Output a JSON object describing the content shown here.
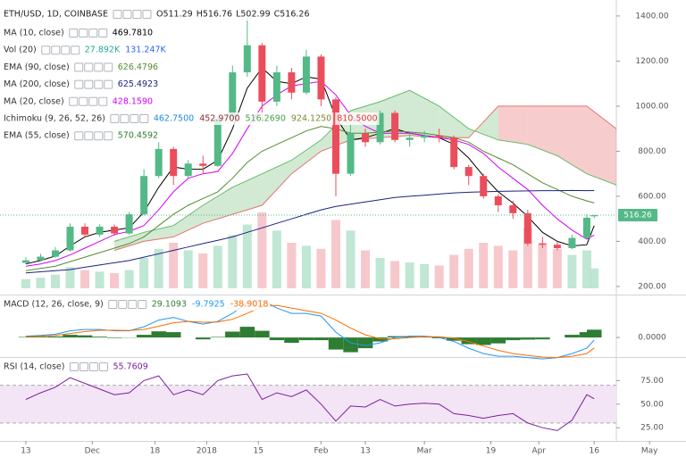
{
  "header": {
    "symbol": "ETH/USD, 1D, COINBASE",
    "ohlc": [
      "O511.29",
      "H516.76",
      "L502.99",
      "C516.26"
    ]
  },
  "indicators": [
    {
      "name": "MA (10, close)",
      "values": [
        "469.7810"
      ],
      "colors": [
        "#000000"
      ]
    },
    {
      "name": "Vol (20)",
      "values": [
        "27.892K",
        "131.247K"
      ],
      "colors": [
        "#26a69a",
        "#2962ff"
      ]
    },
    {
      "name": "EMA (90, close)",
      "values": [
        "626.4796"
      ],
      "colors": [
        "#558b2f"
      ]
    },
    {
      "name": "MA (200, close)",
      "values": [
        "625.4923"
      ],
      "colors": [
        "#1a237e"
      ]
    },
    {
      "name": "MA (20, close)",
      "values": [
        "428.1590"
      ],
      "colors": [
        "#d500f9"
      ]
    },
    {
      "name": "Ichimoku (9, 26, 52, 26)",
      "values": [
        "462.7500",
        "452.9700",
        "516.2690",
        "924.1250",
        "810.5000"
      ],
      "colors": [
        "#1e88e5",
        "#8d2b2b",
        "#43a047",
        "#7c8a2b",
        "#e53935"
      ]
    },
    {
      "name": "EMA (55, close)",
      "values": [
        "570.4592"
      ],
      "colors": [
        "#2e7d32"
      ]
    }
  ],
  "chart_data": [
    {
      "type": "candlestick",
      "x": [
        0,
        4,
        8,
        12,
        16,
        20,
        24,
        28,
        32,
        36,
        40,
        44,
        48,
        52,
        56,
        60,
        64,
        68,
        72,
        76,
        80,
        84,
        88,
        92,
        96,
        100,
        104,
        108,
        112,
        116,
        120,
        124,
        128,
        132,
        136,
        140,
        144,
        148,
        152,
        154
      ],
      "open": [
        305,
        316,
        332,
        360,
        465,
        430,
        465,
        435,
        520,
        690,
        810,
        690,
        745,
        735,
        945,
        1150,
        1270,
        1020,
        1150,
        1060,
        1220,
        1030,
        700,
        880,
        840,
        970,
        850,
        860,
        870,
        860,
        730,
        690,
        600,
        560,
        525,
        390,
        385,
        370,
        415,
        511.29
      ],
      "high": [
        330,
        345,
        375,
        480,
        480,
        475,
        475,
        530,
        720,
        840,
        820,
        760,
        780,
        960,
        1180,
        1420,
        1280,
        1180,
        1170,
        1250,
        1230,
        1040,
        920,
        900,
        980,
        980,
        880,
        890,
        900,
        870,
        740,
        700,
        610,
        580,
        540,
        420,
        400,
        430,
        520,
        516.76
      ],
      "low": [
        300,
        310,
        325,
        355,
        420,
        420,
        425,
        430,
        515,
        680,
        650,
        680,
        700,
        730,
        930,
        1130,
        930,
        1000,
        1030,
        1050,
        1000,
        600,
        690,
        820,
        830,
        840,
        820,
        840,
        840,
        720,
        650,
        590,
        530,
        500,
        380,
        370,
        360,
        365,
        410,
        502.99
      ],
      "close": [
        316,
        332,
        360,
        465,
        430,
        465,
        435,
        520,
        690,
        810,
        690,
        745,
        735,
        945,
        1150,
        1270,
        1020,
        1150,
        1060,
        1220,
        1030,
        700,
        880,
        840,
        970,
        850,
        860,
        870,
        860,
        730,
        690,
        600,
        560,
        525,
        390,
        385,
        370,
        415,
        505,
        516.26
      ],
      "up_color": "#53b987",
      "down_color": "#eb4d5c",
      "volume": {
        "values": [
          60,
          70,
          90,
          140,
          120,
          110,
          100,
          120,
          200,
          260,
          300,
          250,
          230,
          280,
          350,
          420,
          500,
          380,
          300,
          280,
          260,
          450,
          380,
          250,
          200,
          180,
          170,
          160,
          150,
          220,
          260,
          300,
          280,
          250,
          400,
          300,
          260,
          220,
          250,
          131
        ],
        "up_color": "#b9e3cf",
        "down_color": "#f5c2c7",
        "area_color": "#bcdcf5"
      },
      "lines": [
        {
          "color": "#000000",
          "values": [
            300,
            315,
            335,
            380,
            420,
            440,
            450,
            460,
            530,
            640,
            730,
            720,
            720,
            760,
            900,
            1080,
            1170,
            1110,
            1100,
            1130,
            1120,
            950,
            850,
            860,
            880,
            900,
            880,
            870,
            860,
            830,
            770,
            690,
            620,
            570,
            510,
            440,
            400,
            380,
            385,
            469.78
          ]
        },
        {
          "color": "#d500f9",
          "values": [
            290,
            300,
            315,
            340,
            370,
            400,
            430,
            445,
            470,
            540,
            620,
            680,
            700,
            710,
            790,
            900,
            1000,
            1050,
            1090,
            1100,
            1110,
            1050,
            960,
            910,
            880,
            880,
            880,
            870,
            860,
            850,
            830,
            790,
            730,
            680,
            630,
            560,
            500,
            450,
            410,
            428.16
          ]
        },
        {
          "color": "#558b2f",
          "values": [
            270,
            280,
            290,
            310,
            330,
            350,
            370,
            390,
            420,
            470,
            520,
            560,
            590,
            620,
            680,
            750,
            800,
            830,
            860,
            890,
            910,
            900,
            880,
            880,
            885,
            890,
            885,
            880,
            870,
            860,
            840,
            800,
            770,
            740,
            700,
            660,
            630,
            600,
            580,
            570.46
          ]
        },
        {
          "color": "#1a237e",
          "values": [
            260,
            265,
            270,
            275,
            285,
            295,
            305,
            315,
            330,
            345,
            360,
            375,
            390,
            405,
            420,
            440,
            460,
            480,
            500,
            520,
            540,
            555,
            565,
            575,
            585,
            595,
            600,
            605,
            610,
            615,
            618,
            620,
            622,
            623,
            624,
            625,
            625,
            626,
            625,
            625.49
          ]
        }
      ],
      "cloud": {
        "x": [
          24,
          32,
          40,
          48,
          56,
          64,
          72,
          80,
          88,
          96,
          104,
          112,
          120,
          128,
          136,
          144,
          152,
          160,
          168,
          176,
          180
        ],
        "span_a": [
          400,
          440,
          470,
          560,
          640,
          700,
          760,
          850,
          980,
          1020,
          1070,
          1000,
          900,
          850,
          830,
          780,
          700,
          650,
          600,
          540,
          520
        ],
        "span_b": [
          360,
          400,
          420,
          480,
          520,
          560,
          700,
          800,
          850,
          860,
          870,
          860,
          860,
          1000,
          1000,
          1000,
          1000,
          900,
          680,
          680,
          680
        ],
        "up_color": "#a5d6a7",
        "down_color": "#ef9a9a"
      },
      "ylim": [
        164,
        1471
      ],
      "yticks": [
        {
          "value": 200,
          "label": "200.00"
        },
        {
          "value": 400,
          "label": "400.00"
        },
        {
          "value": 600,
          "label": "600.00"
        },
        {
          "value": 800,
          "label": "800.00"
        },
        {
          "value": 1000,
          "label": "1000.00"
        },
        {
          "value": 1200,
          "label": "1200.00"
        },
        {
          "value": 1400,
          "label": "1400.00"
        }
      ],
      "xlim": [
        -7,
        160
      ],
      "xticks": [
        {
          "value": 0,
          "label": "13"
        },
        {
          "value": 18,
          "label": "Dec"
        },
        {
          "value": 35,
          "label": "18"
        },
        {
          "value": 49,
          "label": "2018"
        },
        {
          "value": 63,
          "label": "15"
        },
        {
          "value": 80,
          "label": "Feb"
        },
        {
          "value": 92,
          "label": "13"
        },
        {
          "value": 108,
          "label": "Mar"
        },
        {
          "value": 126,
          "label": "19"
        },
        {
          "value": 139,
          "label": "Apr"
        },
        {
          "value": 154,
          "label": "16"
        },
        {
          "value": 169,
          "label": "May"
        }
      ],
      "last_price": {
        "value": 516.26,
        "label": "516.26"
      },
      "last_color": "#53b987"
    },
    {
      "type": "macd",
      "title": "MACD (12, 26, close, 9)",
      "value_labels": [
        "29.1093",
        "-9.7925",
        "-38.9018"
      ],
      "label_colors": [
        "#2e7d32",
        "#2196f3",
        "#ff6d00"
      ],
      "x": [
        0,
        4,
        8,
        12,
        16,
        20,
        24,
        28,
        32,
        36,
        40,
        44,
        48,
        52,
        56,
        60,
        64,
        68,
        72,
        76,
        80,
        84,
        88,
        92,
        96,
        100,
        104,
        108,
        112,
        116,
        120,
        124,
        128,
        132,
        136,
        140,
        144,
        148,
        152,
        154
      ],
      "histogram": {
        "color": "#2e7d32",
        "values": [
          2,
          3,
          4,
          10,
          8,
          3,
          -2,
          -1,
          10,
          23,
          20,
          0,
          -7,
          2,
          22,
          40,
          25,
          -10,
          -20,
          -10,
          -10,
          -45,
          -55,
          -40,
          -15,
          5,
          5,
          2,
          -3,
          -12,
          -25,
          -28,
          -22,
          -10,
          -8,
          -7,
          0,
          10,
          20,
          29.1093
        ]
      },
      "series": [
        {
          "color": "#2196f3",
          "values": [
            5,
            8,
            12,
            25,
            30,
            30,
            25,
            25,
            40,
            65,
            75,
            60,
            50,
            60,
            90,
            130,
            140,
            110,
            90,
            90,
            80,
            20,
            -20,
            -30,
            -20,
            0,
            5,
            5,
            0,
            -15,
            -40,
            -60,
            -70,
            -70,
            -75,
            -80,
            -75,
            -60,
            -40,
            -9.7925
          ]
        },
        {
          "color": "#ff6d00",
          "values": [
            3,
            5,
            8,
            15,
            22,
            27,
            27,
            26,
            30,
            42,
            55,
            60,
            57,
            58,
            68,
            90,
            115,
            120,
            110,
            100,
            90,
            65,
            35,
            10,
            -5,
            -5,
            0,
            3,
            3,
            -3,
            -15,
            -32,
            -48,
            -60,
            -67,
            -73,
            -75,
            -70,
            -60,
            -38.9018
          ]
        }
      ],
      "ylim": [
        -73,
        157
      ],
      "yticks": [
        {
          "value": 0,
          "label": "0.0000"
        }
      ]
    },
    {
      "type": "line",
      "title": "RSI (14, close)",
      "value_labels": [
        "55.7609"
      ],
      "label_colors": [
        "#7b1fa2"
      ],
      "x": [
        0,
        4,
        8,
        12,
        16,
        20,
        24,
        28,
        32,
        36,
        40,
        44,
        48,
        52,
        56,
        60,
        64,
        68,
        72,
        76,
        80,
        84,
        88,
        92,
        96,
        100,
        104,
        108,
        112,
        116,
        120,
        124,
        128,
        132,
        136,
        140,
        144,
        148,
        152,
        154
      ],
      "series": [
        {
          "color": "#7b1fa2",
          "values": [
            55,
            62,
            68,
            78,
            72,
            66,
            60,
            62,
            75,
            80,
            60,
            65,
            60,
            75,
            80,
            82,
            55,
            62,
            58,
            65,
            50,
            32,
            48,
            47,
            55,
            48,
            50,
            51,
            50,
            40,
            38,
            35,
            38,
            40,
            30,
            25,
            22,
            33,
            60,
            55.7609
          ]
        }
      ],
      "band": [
        30,
        70
      ],
      "band_color": "#f3e5f5",
      "ylim": [
        11,
        99
      ],
      "yticks": [
        {
          "value": 25,
          "label": "25.00"
        },
        {
          "value": 50,
          "label": "50.00"
        },
        {
          "value": 75,
          "label": "75.00"
        }
      ]
    }
  ]
}
